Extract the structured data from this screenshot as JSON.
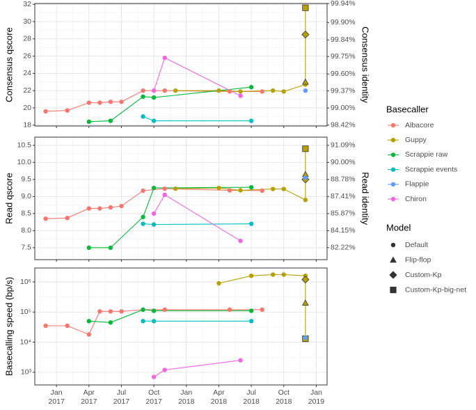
{
  "chart_data": [
    {
      "type": "line",
      "ylabel": "Consensus qscore",
      "y2label": "Consensus identity",
      "ylim": [
        17.9,
        32.1
      ],
      "yticks": [
        18,
        20,
        22,
        24,
        26,
        28,
        30,
        32
      ],
      "y2scale": "phred",
      "y2lim": [
        98.38,
        99.94
      ],
      "y2ticks": [
        {
          "value": 98.42,
          "label": "98.42%"
        },
        {
          "value": 99.0,
          "label": "99.00%"
        },
        {
          "value": 99.37,
          "label": "99.37%"
        },
        {
          "value": 99.6,
          "label": "99.60%"
        },
        {
          "value": 99.75,
          "label": "99.75%"
        },
        {
          "value": 99.84,
          "label": "99.84%"
        },
        {
          "value": 99.9,
          "label": "99.90%"
        },
        {
          "value": 99.94,
          "label": "99.94%"
        }
      ],
      "xlim": [
        "2016-11",
        "2019-02"
      ],
      "xticks": [
        "2017-01",
        "2017-04",
        "2017-07",
        "2017-10",
        "2018-01",
        "2018-04",
        "2018-07",
        "2018-10",
        "2019-01"
      ],
      "grid": true,
      "series": [
        {
          "name": "Albacore",
          "x": [
            "2016-12",
            "2017-02",
            "2017-04",
            "2017-05",
            "2017-06",
            "2017-07",
            "2017-09",
            "2017-11",
            "2018-05",
            "2018-08"
          ],
          "values": [
            19.6,
            19.7,
            20.6,
            20.6,
            20.7,
            20.7,
            22.0,
            22.0,
            21.9,
            21.9
          ]
        },
        {
          "name": "Guppy",
          "x": [
            "2017-12",
            "2018-04",
            "2018-06",
            "2018-09",
            "2018-10",
            "2018-12",
            "2018-12",
            "2018-12",
            "2018-12"
          ],
          "values": [
            22.0,
            22.0,
            21.9,
            22.0,
            21.9,
            22.7,
            23.0,
            28.5,
            31.6
          ],
          "models": [
            "Default",
            "Default",
            "Default",
            "Default",
            "Default",
            "Default",
            "Flip-flop",
            "Custom-Kp",
            "Custom-Kp-big-net"
          ]
        },
        {
          "name": "Scrappie raw",
          "x": [
            "2017-04",
            "2017-06",
            "2017-09",
            "2017-10",
            "2018-07"
          ],
          "values": [
            18.4,
            18.5,
            21.3,
            21.2,
            22.4
          ]
        },
        {
          "name": "Scrappie events",
          "x": [
            "2017-09",
            "2017-10",
            "2018-07"
          ],
          "values": [
            19.0,
            18.5,
            18.5
          ]
        },
        {
          "name": "Flappie",
          "x": [
            "2018-12"
          ],
          "values": [
            22.0
          ]
        },
        {
          "name": "Chiron",
          "x": [
            "2017-10",
            "2017-11",
            "2018-06"
          ],
          "values": [
            22.0,
            25.8,
            21.4
          ]
        }
      ]
    },
    {
      "type": "line",
      "ylabel": "Read qscore",
      "y2label": "Read identity",
      "ylim": [
        7.15,
        10.74
      ],
      "yticks": [
        7.5,
        {
          "value": 8,
          "label": "8.0"
        },
        8.5,
        {
          "value": 9,
          "label": "9.0"
        },
        9.5,
        {
          "value": 10,
          "label": "10.0"
        },
        10.5
      ],
      "y2scale": "phred",
      "y2lim": [
        80.72,
        91.57
      ],
      "y2ticks": [
        {
          "value": 82.22,
          "label": "82.22%"
        },
        {
          "value": 84.15,
          "label": "84.15%"
        },
        {
          "value": 85.87,
          "label": "85.87%"
        },
        {
          "value": 87.41,
          "label": "87.41%"
        },
        {
          "value": 88.78,
          "label": "88.78%"
        },
        {
          "value": 90.0,
          "label": "90.00%"
        },
        {
          "value": 91.09,
          "label": "91.09%"
        }
      ],
      "xlim": [
        "2016-11",
        "2019-02"
      ],
      "xticks": [
        "2017-01",
        "2017-04",
        "2017-07",
        "2017-10",
        "2018-01",
        "2018-04",
        "2018-07",
        "2018-10",
        "2019-01"
      ],
      "grid": true,
      "series": [
        {
          "name": "Albacore",
          "x": [
            "2016-12",
            "2017-02",
            "2017-04",
            "2017-05",
            "2017-06",
            "2017-07",
            "2017-09",
            "2017-11",
            "2018-05",
            "2018-08"
          ],
          "values": [
            8.35,
            8.37,
            8.65,
            8.65,
            8.68,
            8.72,
            9.17,
            9.23,
            9.18,
            9.17
          ]
        },
        {
          "name": "Guppy",
          "x": [
            "2017-12",
            "2018-04",
            "2018-06",
            "2018-09",
            "2018-10",
            "2018-12",
            "2018-12",
            "2018-12",
            "2018-12"
          ],
          "values": [
            9.23,
            9.25,
            9.18,
            9.22,
            9.22,
            8.9,
            9.65,
            9.5,
            10.4
          ],
          "models": [
            "Default",
            "Default",
            "Default",
            "Default",
            "Default",
            "Default",
            "Flip-flop",
            "Custom-Kp",
            "Custom-Kp-big-net"
          ]
        },
        {
          "name": "Scrappie raw",
          "x": [
            "2017-04",
            "2017-06",
            "2017-09",
            "2017-10",
            "2018-07"
          ],
          "values": [
            7.5,
            7.5,
            8.4,
            9.25,
            9.27
          ]
        },
        {
          "name": "Scrappie events",
          "x": [
            "2017-09",
            "2017-10",
            "2018-07"
          ],
          "values": [
            8.2,
            8.18,
            8.2
          ]
        },
        {
          "name": "Flappie",
          "x": [
            "2018-12"
          ],
          "values": [
            9.55
          ]
        },
        {
          "name": "Chiron",
          "x": [
            "2017-10",
            "2017-11",
            "2018-06"
          ],
          "values": [
            8.5,
            9.05,
            7.7
          ]
        }
      ]
    },
    {
      "type": "line",
      "ylabel": "Basecalling speed (bp/s)",
      "log": true,
      "ylim": [
        380,
        2900000
      ],
      "yticks": [
        {
          "value": 1000,
          "label": "10³"
        },
        {
          "value": 10000,
          "label": "10⁴"
        },
        {
          "value": 100000,
          "label": "10⁵"
        },
        {
          "value": 1000000,
          "label": "10⁶"
        }
      ],
      "xlim": [
        "2016-11",
        "2019-02"
      ],
      "xticks": [
        {
          "value": "2017-01",
          "label": "Jan\n2017"
        },
        {
          "value": "2017-04",
          "label": "Apr\n2017"
        },
        {
          "value": "2017-07",
          "label": "Jul\n2017"
        },
        {
          "value": "2017-10",
          "label": "Oct\n2017"
        },
        {
          "value": "2018-01",
          "label": "Jan\n2018"
        },
        {
          "value": "2018-04",
          "label": "Apr\n2018"
        },
        {
          "value": "2018-07",
          "label": "Jul\n2018"
        },
        {
          "value": "2018-10",
          "label": "Oct\n2018"
        },
        {
          "value": "2019-01",
          "label": "Jan\n2019"
        }
      ],
      "grid": true,
      "series": [
        {
          "name": "Albacore",
          "x": [
            "2016-12",
            "2017-02",
            "2017-04",
            "2017-05",
            "2017-06",
            "2017-07",
            "2017-09",
            "2017-11",
            "2018-05",
            "2018-08"
          ],
          "values": [
            35000,
            35000,
            18000,
            105000,
            105000,
            105000,
            120000,
            120000,
            120000,
            120000
          ]
        },
        {
          "name": "Guppy",
          "x": [
            "2018-04",
            "2018-07",
            "2018-09",
            "2018-10",
            "2018-12",
            "2018-12",
            "2018-12",
            "2018-12"
          ],
          "values": [
            900000,
            1600000,
            1750000,
            1750000,
            1600000,
            200000,
            1200000,
            13000
          ],
          "models": [
            "Default",
            "Default",
            "Default",
            "Default",
            "Default",
            "Flip-flop",
            "Custom-Kp",
            "Custom-Kp-big-net"
          ]
        },
        {
          "name": "Scrappie raw",
          "x": [
            "2017-04",
            "2017-06",
            "2017-09",
            "2017-10",
            "2018-07"
          ],
          "values": [
            50000,
            45000,
            120000,
            110000,
            110000
          ]
        },
        {
          "name": "Scrappie events",
          "x": [
            "2017-09",
            "2017-10",
            "2018-07"
          ],
          "values": [
            50000,
            50000,
            50000
          ]
        },
        {
          "name": "Flappie",
          "x": [
            "2018-12"
          ],
          "values": [
            14000
          ]
        },
        {
          "name": "Chiron",
          "x": [
            "2017-10",
            "2017-11",
            "2018-06"
          ],
          "values": [
            700,
            1200,
            2500
          ]
        }
      ]
    }
  ],
  "legend": {
    "basecaller": {
      "title": "Basecaller",
      "items": [
        {
          "name": "Albacore",
          "color": "#f8766d"
        },
        {
          "name": "Guppy",
          "color": "#b79f00"
        },
        {
          "name": "Scrappie raw",
          "color": "#00ba38"
        },
        {
          "name": "Scrappie events",
          "color": "#00bfc4"
        },
        {
          "name": "Flappie",
          "color": "#619cff"
        },
        {
          "name": "Chiron",
          "color": "#f564e3"
        }
      ]
    },
    "model": {
      "title": "Model",
      "items": [
        {
          "name": "Default",
          "shape": "circle"
        },
        {
          "name": "Flip-flop",
          "shape": "triangle"
        },
        {
          "name": "Custom-Kp",
          "shape": "diamond"
        },
        {
          "name": "Custom-Kp-big-net",
          "shape": "square"
        }
      ]
    }
  }
}
